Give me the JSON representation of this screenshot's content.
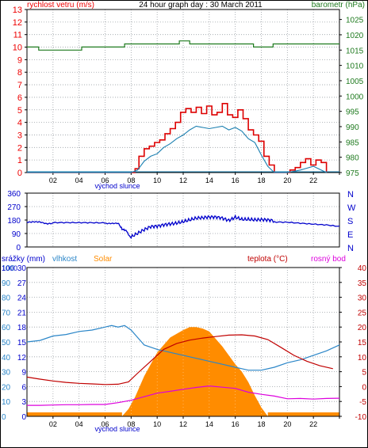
{
  "colors": {
    "wind": "#ee0000",
    "gust": "#dd0000",
    "avgwind": "#1a7fb0",
    "baro": "#1e7a1e",
    "dir": "#0000cc",
    "hum": "#2b86c8",
    "temp": "#c00000",
    "dew": "#dd00dd",
    "solar": "#ff8c00",
    "rain": "#ff8c00",
    "grid": "#9aa0a6"
  },
  "panel1": {
    "left_label": "rychlost vetru (m/s)",
    "title": "24 hour graph day : 30 March 2011",
    "right_label": "barometr (hPa)",
    "left_ticks": [
      "0",
      "1",
      "2",
      "3",
      "4",
      "5",
      "6",
      "7",
      "8",
      "9",
      "10",
      "11",
      "12",
      "13"
    ],
    "right_ticks": [
      "975",
      "980",
      "985",
      "990",
      "995",
      "1000",
      "1005",
      "1010",
      "1015",
      "1020",
      "1025"
    ],
    "x_ticks": [
      "02",
      "04",
      "06",
      "08",
      "10",
      "12",
      "14",
      "16",
      "18",
      "20",
      "22"
    ],
    "sunrise_label": "východ slunce"
  },
  "panel2": {
    "left_ticks": [
      "0",
      "90",
      "180",
      "270",
      "360"
    ],
    "right_ticks": [
      "N",
      "E",
      "S",
      "W",
      "N"
    ]
  },
  "panel3": {
    "legend_rain": "srážky (mm)",
    "legend_hum": "vlhkost",
    "legend_solar": "Solar",
    "legend_temp": "teplota (°C)",
    "legend_dew": "rosný bod",
    "rain_ticks": [
      "0",
      "3",
      "6",
      "9",
      "12",
      "15",
      "18",
      "21",
      "24",
      "27",
      "30"
    ],
    "hum_ticks": [
      "0",
      "10",
      "20",
      "30",
      "40",
      "50",
      "60",
      "70",
      "80",
      "90",
      "100"
    ],
    "solar_ticks": [
      "0",
      "100",
      "200",
      "300",
      "400",
      "500",
      "600",
      "700",
      "800",
      "900",
      "1000"
    ],
    "temp_ticks": [
      "-10",
      "-5",
      "0",
      "5",
      "10",
      "15",
      "20",
      "25",
      "30",
      "35",
      "40"
    ],
    "x_ticks": [
      "02",
      "04",
      "06",
      "08",
      "10",
      "12",
      "14",
      "16",
      "18",
      "20",
      "22"
    ],
    "sunrise_label": "východ slunce"
  },
  "chart_data": [
    {
      "type": "line",
      "title": "24 hour graph day : 30 March 2011",
      "ylabel": "rychlost vetru (m/s)",
      "y2label": "barometr (hPa)",
      "ylim": [
        0,
        13
      ],
      "y2lim": [
        975,
        1025
      ],
      "xlim": [
        0,
        24
      ],
      "grid": true,
      "series": [
        {
          "name": "gust",
          "axis": "left",
          "x": [
            0,
            8,
            8.3,
            8.6,
            9,
            9.4,
            9.8,
            10.2,
            10.6,
            11,
            11.4,
            11.8,
            12.2,
            12.6,
            13,
            13.4,
            13.8,
            14.2,
            14.6,
            15,
            15.4,
            15.8,
            16.2,
            16.6,
            17,
            17.4,
            17.8,
            18.2,
            18.6,
            19,
            19.4,
            19.8,
            20.2,
            20.6,
            21,
            21.4,
            21.8,
            22.2,
            22.6,
            23
          ],
          "y": [
            0,
            0,
            0.3,
            1.3,
            1.9,
            2.1,
            2.4,
            2.6,
            3.1,
            3.5,
            4.0,
            4.8,
            5.1,
            4.8,
            5.2,
            4.7,
            5.3,
            4.6,
            4.8,
            5.5,
            4.6,
            4.4,
            5.0,
            4.3,
            3.4,
            3.0,
            2.5,
            1.3,
            0.6,
            0,
            0,
            0,
            0.2,
            0.4,
            0.8,
            1.1,
            0.6,
            1.0,
            0.8,
            0
          ]
        },
        {
          "name": "avg",
          "axis": "left",
          "x": [
            0,
            8,
            8.5,
            9,
            9.5,
            10,
            10.5,
            11,
            11.5,
            12,
            12.5,
            13,
            13.5,
            14,
            14.5,
            15,
            15.5,
            16,
            16.5,
            17,
            17.5,
            18,
            18.5,
            19,
            20,
            21,
            22,
            23
          ],
          "y": [
            0,
            0,
            0.2,
            0.9,
            1.3,
            1.5,
            2.0,
            2.3,
            2.7,
            3.0,
            3.4,
            3.7,
            3.6,
            3.5,
            3.6,
            3.7,
            3.4,
            3.6,
            3.3,
            2.7,
            2.4,
            1.4,
            0.5,
            0,
            0,
            0.2,
            0.5,
            0
          ]
        },
        {
          "name": "pressure",
          "axis": "right",
          "x": [
            0,
            0.8,
            0.9,
            4.1,
            4.2,
            4.6,
            7.4,
            7.5,
            11.6,
            11.7,
            12.4,
            12.5,
            17.3,
            17.4,
            18.8,
            18.9,
            24
          ],
          "y": [
            1016,
            1016,
            1015,
            1015,
            1016,
            1016,
            1016,
            1017,
            1017,
            1018,
            1018,
            1017,
            1017,
            1016,
            1016,
            1017,
            1017
          ]
        }
      ]
    },
    {
      "type": "line",
      "ylim": [
        0,
        360
      ],
      "xlim": [
        0,
        24
      ],
      "grid": true,
      "series": [
        {
          "name": "direction",
          "x": [
            0,
            0.5,
            1,
            1.5,
            2,
            3,
            4,
            5,
            6,
            6.5,
            7,
            7.3,
            7.6,
            8,
            8.5,
            9,
            9.5,
            10,
            10.5,
            11,
            11.5,
            12,
            12.5,
            13,
            13.5,
            14,
            14.5,
            15,
            15.5,
            16,
            16.5,
            17,
            17.5,
            18,
            18.5,
            19,
            20,
            21,
            22,
            23,
            24
          ],
          "y": [
            165,
            170,
            170,
            158,
            160,
            160,
            160,
            160,
            160,
            160,
            160,
            120,
            110,
            60,
            80,
            105,
            130,
            140,
            155,
            165,
            170,
            175,
            180,
            185,
            185,
            190,
            195,
            195,
            185,
            210,
            195,
            190,
            180,
            175,
            170,
            165,
            165,
            160,
            155,
            150,
            140
          ]
        }
      ]
    },
    {
      "type": "area",
      "xlim": [
        0,
        24
      ],
      "ylim": [
        -10,
        40
      ],
      "grid": true,
      "series": [
        {
          "name": "solar",
          "axis": "solar",
          "ylim": [
            0,
            1000
          ],
          "x": [
            0,
            7.3,
            7.8,
            8.3,
            9,
            10,
            11,
            12,
            12.5,
            13,
            13.5,
            14,
            15,
            16,
            16.5,
            17,
            17.5,
            18,
            18.5,
            24
          ],
          "y": [
            0,
            0,
            50,
            130,
            270,
            430,
            530,
            580,
            600,
            600,
            590,
            570,
            470,
            350,
            300,
            230,
            140,
            60,
            0,
            0
          ]
        },
        {
          "name": "teplota (°C)",
          "axis": "temp",
          "x": [
            0,
            1,
            2,
            3,
            4,
            5,
            6,
            7,
            7.8,
            8.5,
            9.5,
            10.5,
            11.5,
            12.5,
            13.5,
            14.5,
            15.5,
            16.5,
            17.5,
            18.5,
            19.5,
            20.5,
            21.5,
            22.5,
            23.5
          ],
          "y": [
            3.2,
            2.5,
            1.9,
            1.4,
            1.1,
            0.9,
            0.7,
            0.8,
            1.6,
            4.5,
            8.5,
            12.5,
            14.5,
            15.6,
            16.3,
            16.8,
            17.3,
            17.4,
            17.0,
            15.8,
            13.2,
            10.5,
            8.5,
            7.0,
            6.0
          ]
        },
        {
          "name": "vlhkost",
          "axis": "hum",
          "x": [
            0,
            1,
            2,
            3,
            4,
            5,
            6,
            6.5,
            7,
            7.5,
            8,
            8.5,
            9,
            10,
            11,
            12,
            13,
            14,
            15,
            16,
            16.5,
            17,
            18,
            19,
            20,
            21,
            22,
            23,
            24
          ],
          "y": [
            50,
            51,
            54,
            55,
            57,
            58,
            60,
            61,
            60,
            61,
            58,
            53,
            48,
            45,
            43,
            41,
            39,
            37,
            35,
            33,
            32,
            31,
            31,
            33,
            36,
            38,
            41,
            44,
            48
          ]
        },
        {
          "name": "rosný bod",
          "axis": "temp",
          "x": [
            0,
            1,
            2,
            3,
            4,
            5,
            6,
            7,
            7.5,
            8,
            9,
            10,
            11,
            12,
            13,
            14,
            15,
            16,
            17,
            18,
            19,
            20,
            21,
            22,
            23,
            24
          ],
          "y": [
            -6.3,
            -6.3,
            -6.2,
            -6.1,
            -6.1,
            -6.0,
            -6.0,
            -5.4,
            -5.0,
            -4.6,
            -3.4,
            -2.2,
            -1.6,
            -0.9,
            -0.3,
            0.2,
            -0.2,
            -0.6,
            -1.9,
            -2.6,
            -3.2,
            -4.1,
            -4.0,
            -4.2,
            -4.0,
            -3.9
          ]
        },
        {
          "name": "srážky (mm)",
          "axis": "rain",
          "ylim": [
            0,
            30
          ],
          "x": [
            0,
            24
          ],
          "y": [
            0,
            0
          ]
        }
      ]
    }
  ]
}
